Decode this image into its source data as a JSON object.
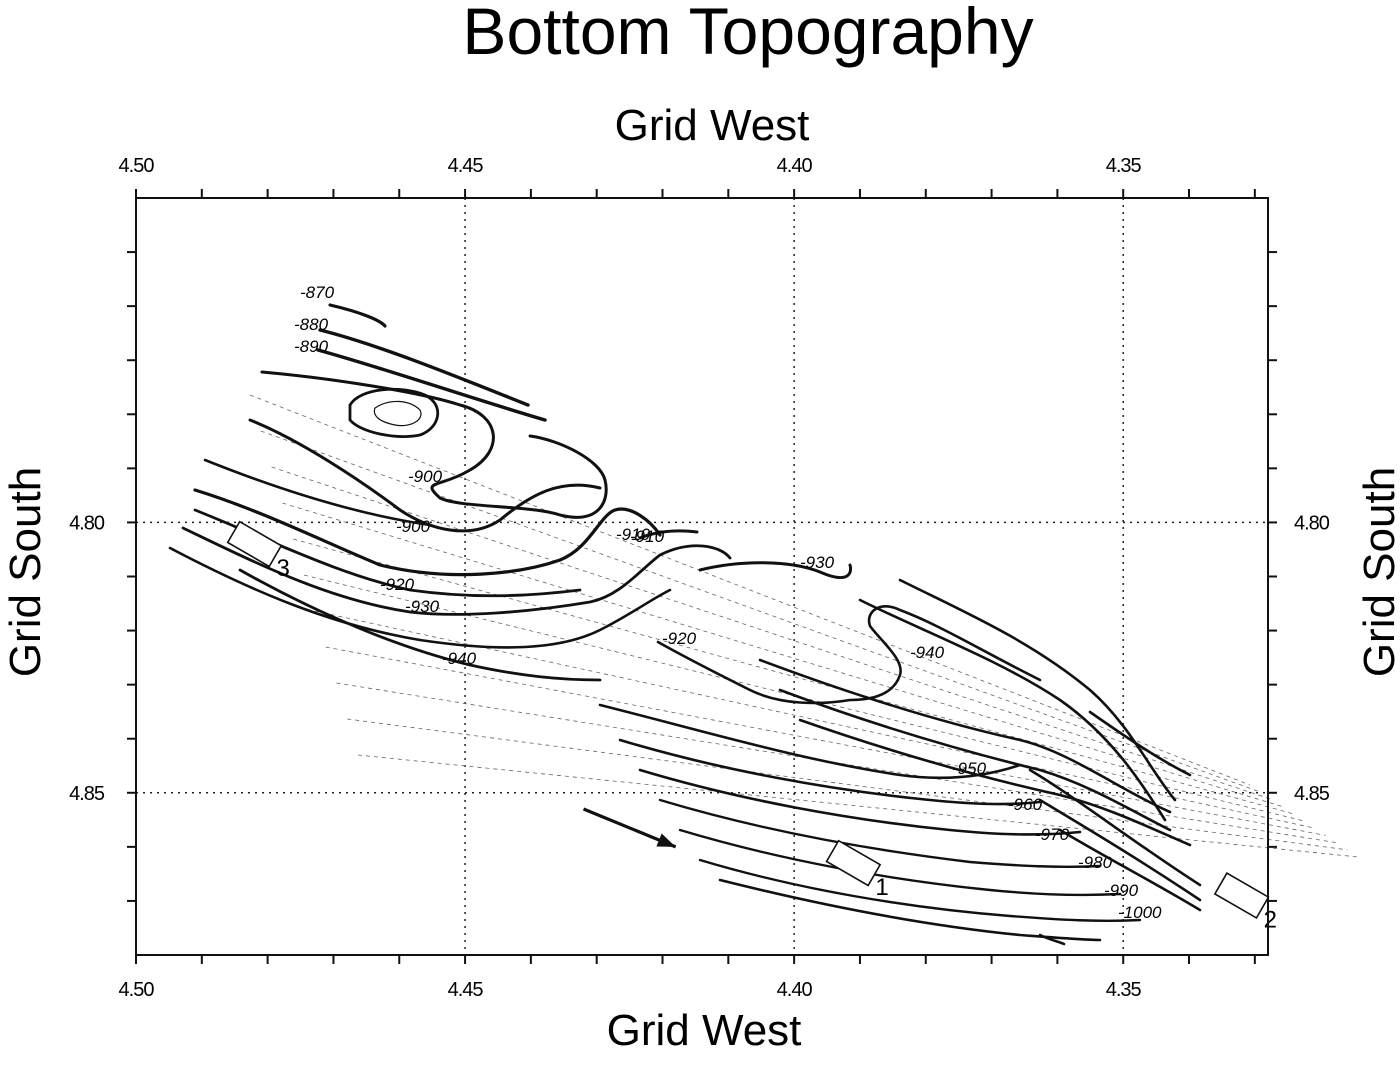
{
  "chart_data": {
    "type": "contour",
    "title": "Bottom Topography",
    "xlabel": "Grid West",
    "ylabel": "Grid South",
    "xlim": [
      4.5,
      4.328
    ],
    "ylim": [
      4.74,
      4.88
    ],
    "x_ticks": [
      "4.50",
      "4.45",
      "4.40",
      "4.35"
    ],
    "y_ticks": [
      "4.80",
      "4.85"
    ],
    "grid": "dotted at labelled ticks",
    "contour_levels": [
      -870,
      -880,
      -890,
      -900,
      -900,
      -910,
      -910,
      -920,
      -920,
      -930,
      -930,
      -940,
      -940,
      -950,
      -960,
      -970,
      -980,
      -990,
      -1000
    ],
    "contour_labels": [
      "-870",
      "-880",
      "-890",
      "-900",
      "-900",
      "-910",
      "-910",
      "-920",
      "-920",
      "-930",
      "-930",
      "-940",
      "-940",
      "-950",
      "-960",
      "-970",
      "-980",
      "-990",
      "-1000"
    ],
    "moorings": [
      {
        "label": "1",
        "x": 4.391,
        "y": 4.863
      },
      {
        "label": "2",
        "x": 4.332,
        "y": 4.869
      },
      {
        "label": "3",
        "x": 4.482,
        "y": 4.804
      }
    ],
    "flow_arrow": {
      "x0": 4.432,
      "y0": 4.853,
      "x1": 4.418,
      "y1": 4.86
    }
  }
}
